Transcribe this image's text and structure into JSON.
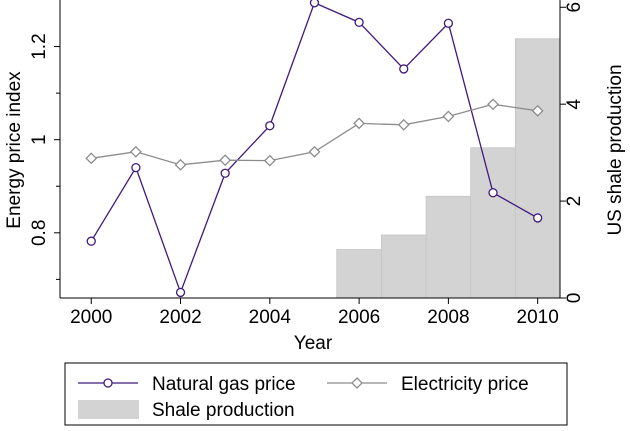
{
  "chart_data": {
    "type": "line",
    "x": [
      2000,
      2001,
      2002,
      2003,
      2004,
      2005,
      2006,
      2007,
      2008,
      2009,
      2010
    ],
    "xlabel": "Year",
    "ylabel_left": "Energy price index",
    "ylabel_right": "US shale production",
    "xlim": [
      1999.3,
      2010.5
    ],
    "ylim_left": [
      0.66,
      1.3
    ],
    "ylim_right": [
      0,
      6.15
    ],
    "xticks": [
      2000,
      2002,
      2004,
      2006,
      2008,
      2010
    ],
    "yticks_left": [
      0.8,
      1,
      1.2
    ],
    "ytick_labels_left": [
      "0.8",
      "1",
      "1.2"
    ],
    "yticks_right": [
      0,
      2,
      4,
      6
    ],
    "ytick_labels_right": [
      "0",
      "2",
      "4",
      "6"
    ],
    "series": [
      {
        "name": "Natural gas price",
        "axis": "left",
        "color": "#3f1a7a",
        "marker": "circle",
        "values": [
          0.782,
          0.94,
          0.672,
          0.928,
          1.03,
          1.294,
          1.252,
          1.152,
          1.25,
          0.886,
          0.832
        ]
      },
      {
        "name": "Electricity price",
        "axis": "left",
        "color": "#8c8c8c",
        "marker": "diamond",
        "values": [
          0.96,
          0.974,
          0.946,
          0.956,
          0.955,
          0.974,
          1.035,
          1.032,
          1.05,
          1.076,
          1.062
        ]
      }
    ],
    "bars": {
      "name": "Shale production",
      "axis": "right",
      "color": "#d3d3d3",
      "x": [
        2006,
        2007,
        2008,
        2009,
        2010
      ],
      "values": [
        1.0,
        1.3,
        2.1,
        3.1,
        5.35
      ]
    },
    "legend": {
      "placement": "bottom",
      "entries": [
        "Natural gas price",
        "Electricity price",
        "Shale production"
      ]
    }
  }
}
